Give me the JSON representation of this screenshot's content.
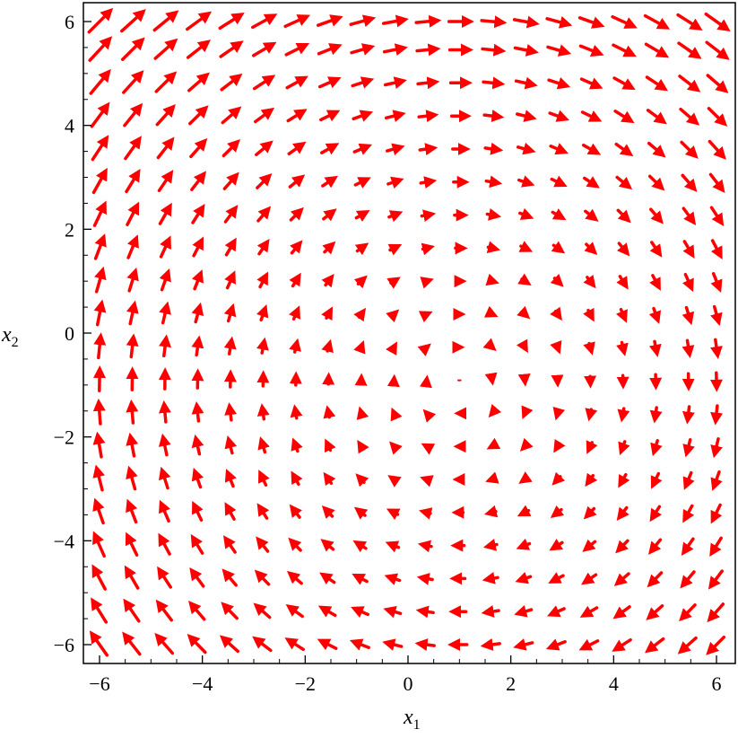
{
  "chart_data": {
    "type": "vector-field",
    "title": "",
    "xlabel": {
      "symbol": "x",
      "subscript": "1"
    },
    "ylabel": {
      "symbol": "x",
      "subscript": "2"
    },
    "xlim": [
      -6.3,
      6.3
    ],
    "ylim": [
      -6.3,
      6.3
    ],
    "x_ticks": [
      -6,
      -4,
      -2,
      0,
      2,
      4,
      6
    ],
    "y_ticks": [
      -6,
      -4,
      -2,
      0,
      2,
      4,
      6
    ],
    "x_tick_labels": [
      "−6",
      "−4",
      "−2",
      "0",
      "2",
      "4",
      "6"
    ],
    "y_tick_labels": [
      "−6",
      "−4",
      "−2",
      "0",
      "2",
      "4",
      "6"
    ],
    "grid": false,
    "arrow_color": "#ff0000",
    "field": {
      "center": [
        1,
        -1
      ],
      "dx": "x2 + 1",
      "dy": "-(x1 - 1)"
    },
    "sample_x": [
      -6,
      -5.3636,
      -4.7273,
      -4.0909,
      -3.4545,
      -2.8182,
      -2.1818,
      -1.5455,
      -0.9091,
      -0.2727,
      0.3636,
      1,
      1.6364,
      2.2727,
      2.9091,
      3.5455,
      4.1818,
      4.8182,
      5.4545,
      6
    ],
    "sample_y": [
      -6,
      -5.3636,
      -4.7273,
      -4.0909,
      -3.4545,
      -2.8182,
      -2.1818,
      -1.5455,
      -0.9091,
      -0.2727,
      0.3636,
      1,
      1.6364,
      2.2727,
      2.9091,
      3.5455,
      4.1818,
      4.8182,
      5.4545,
      6
    ]
  }
}
